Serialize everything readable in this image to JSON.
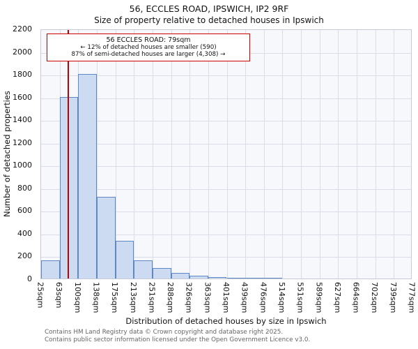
{
  "title": "56, ECCLES ROAD, IPSWICH, IP2 9RF",
  "subtitle": "Size of property relative to detached houses in Ipswich",
  "y_axis_label": "Number of detached properties",
  "x_axis_label": "Distribution of detached houses by size in Ipswich",
  "annotation": {
    "line1": "56 ECCLES ROAD: 79sqm",
    "line2": "← 12% of detached houses are smaller (590)",
    "line3": "87% of semi-detached houses are larger (4,308) →"
  },
  "footer": {
    "line1": "Contains HM Land Registry data © Crown copyright and database right 2025.",
    "line2": "Contains public sector information licensed under the Open Government Licence v3.0."
  },
  "colors": {
    "bar_fill": "#ccdbf1",
    "bar_border": "#5d87c5",
    "marker_line": "#bb0000",
    "annotation_border": "#cc0000",
    "grid": "#d8dde8"
  },
  "chart_data": {
    "type": "bar",
    "title": "56, ECCLES ROAD, IPSWICH, IP2 9RF — Size of property relative to detached houses in Ipswich",
    "xlabel": "Distribution of detached houses by size in Ipswich",
    "ylabel": "Number of detached properties",
    "bin_labels": [
      "25sqm",
      "63sqm",
      "100sqm",
      "138sqm",
      "175sqm",
      "213sqm",
      "251sqm",
      "288sqm",
      "326sqm",
      "363sqm",
      "401sqm",
      "439sqm",
      "476sqm",
      "514sqm",
      "551sqm",
      "589sqm",
      "627sqm",
      "664sqm",
      "702sqm",
      "739sqm",
      "777sqm"
    ],
    "bin_edges_sqm": [
      25,
      63,
      100,
      138,
      175,
      213,
      251,
      288,
      326,
      363,
      401,
      439,
      476,
      514,
      551,
      589,
      627,
      664,
      702,
      739,
      777
    ],
    "values": [
      160,
      1600,
      1800,
      720,
      330,
      160,
      90,
      50,
      22,
      12,
      8,
      6,
      4,
      0,
      0,
      0,
      0,
      0,
      0,
      0
    ],
    "marker_value_sqm": 79,
    "ylim": [
      0,
      2200
    ],
    "ytick_step": 200,
    "grid": true,
    "legend": false
  }
}
